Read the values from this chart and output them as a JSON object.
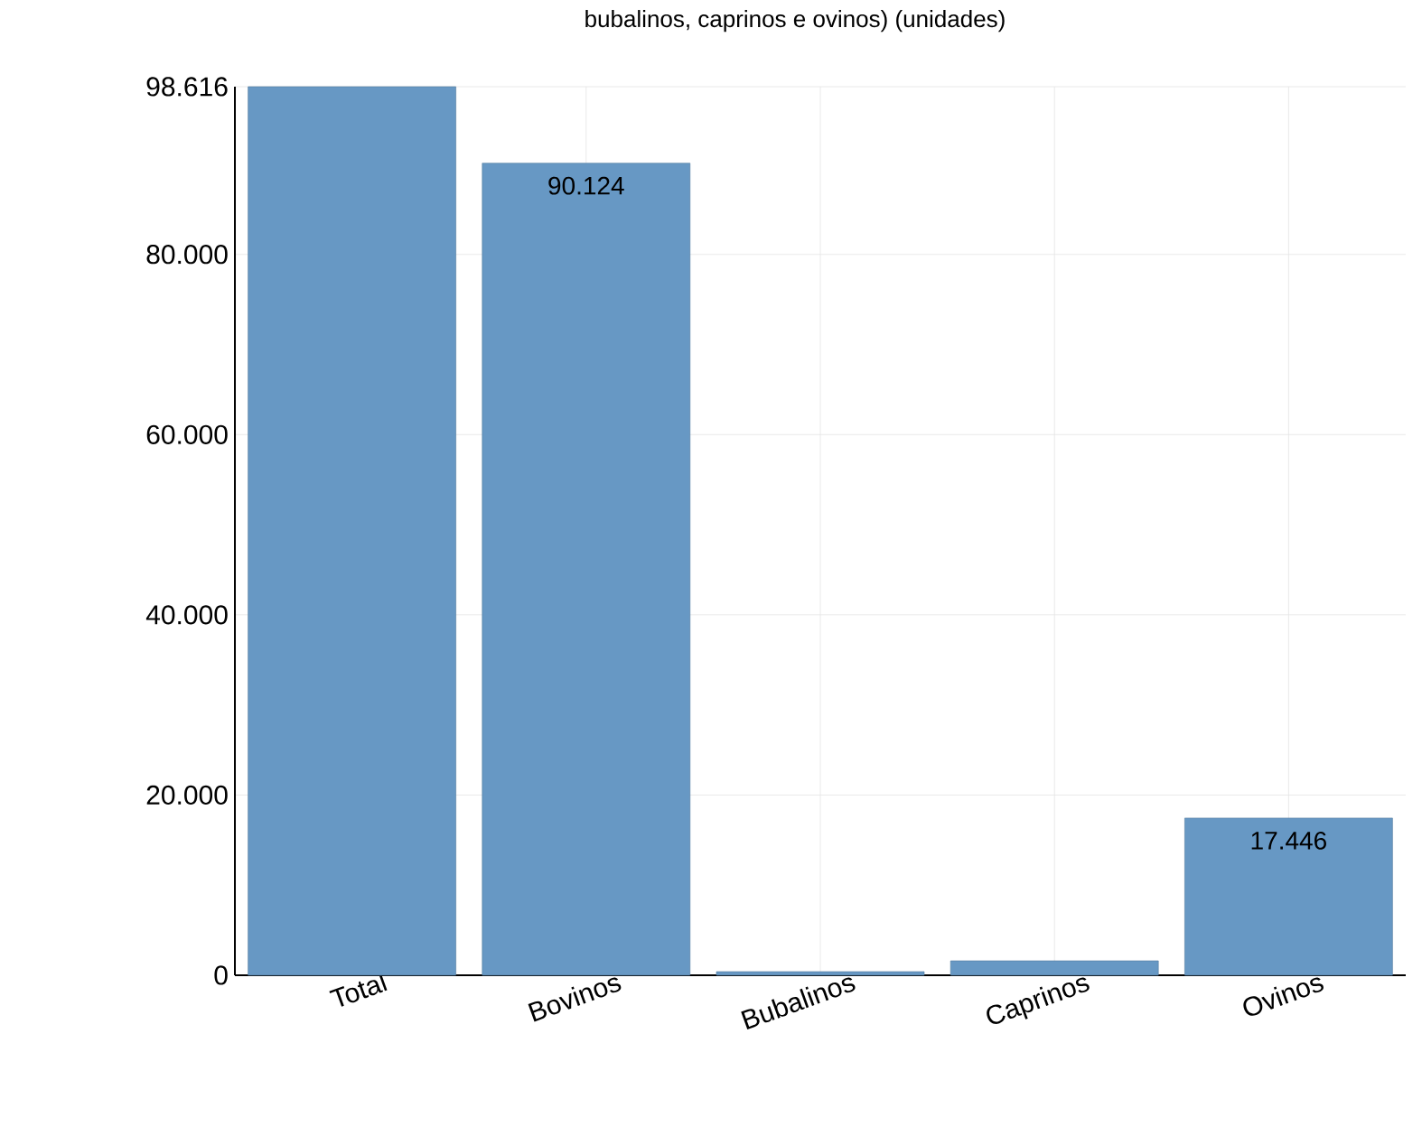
{
  "chart_data": {
    "type": "bar",
    "title": "bubalinos, caprinos e ovinos) (unidades)",
    "categories": [
      "Total",
      "Bovinos",
      "Bubalinos",
      "Caprinos",
      "Ovinos"
    ],
    "values": [
      98616,
      90124,
      400,
      1600,
      17446
    ],
    "value_labels": [
      null,
      "90.124",
      null,
      null,
      "17.446"
    ],
    "color": "#6798c4",
    "ylim": [
      0,
      98616
    ],
    "yticks": [
      {
        "value": 0,
        "label": "0"
      },
      {
        "value": 20000,
        "label": "20.000"
      },
      {
        "value": 40000,
        "label": "40.000"
      },
      {
        "value": 60000,
        "label": "60.000"
      },
      {
        "value": 80000,
        "label": "80.000"
      },
      {
        "value": 98616,
        "label": "98.616"
      }
    ],
    "grid": true
  }
}
